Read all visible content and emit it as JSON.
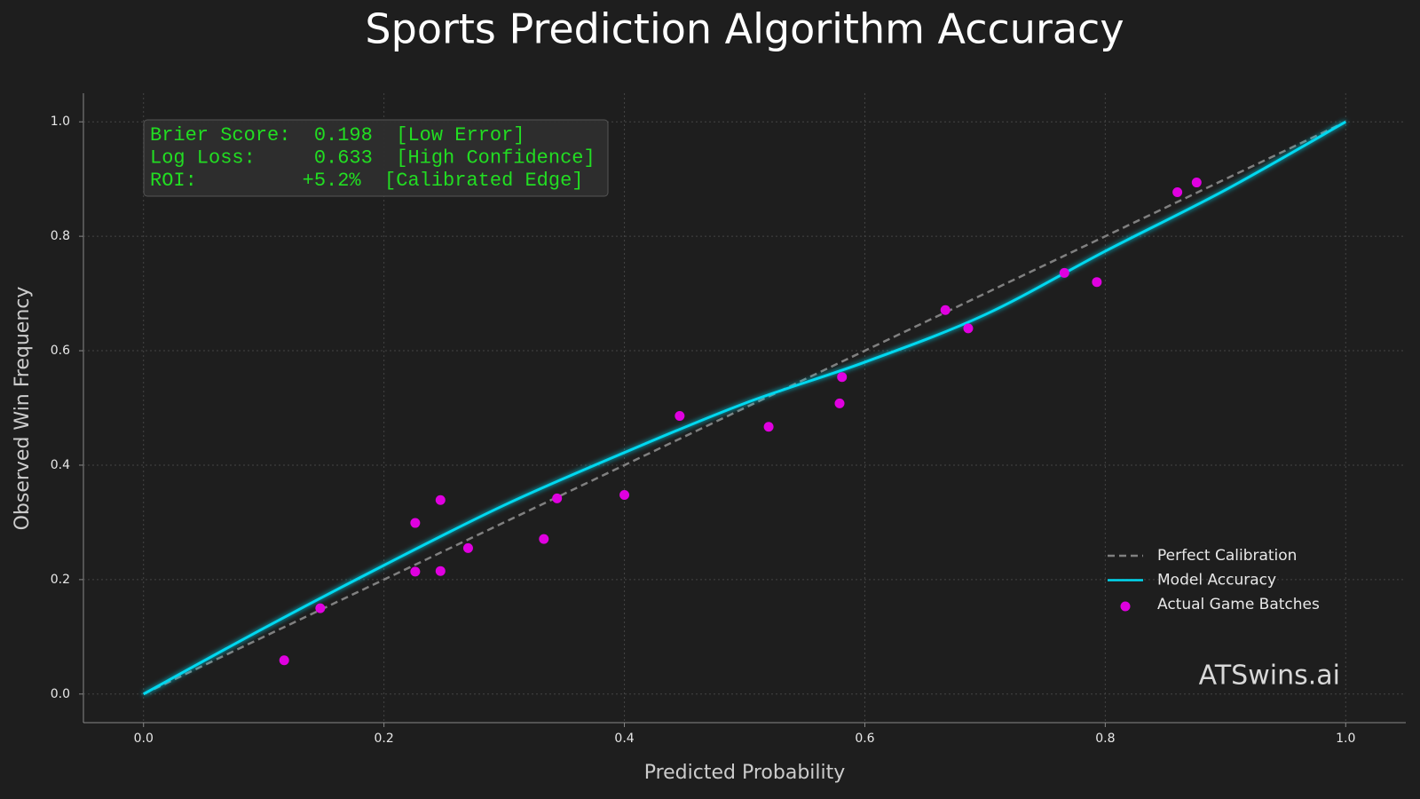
{
  "chart_data": {
    "type": "scatter",
    "title": "Sports Prediction Algorithm Accuracy",
    "x_label": "Predicted Probability",
    "y_label": "Observed Win Frequency",
    "xlim": [
      -0.05,
      1.05
    ],
    "ylim": [
      -0.05,
      1.05
    ],
    "xticks": [
      {
        "value": 0,
        "label": "0.0"
      },
      0.2,
      0.4,
      0.6,
      0.8,
      {
        "value": 1,
        "label": "1.0"
      }
    ],
    "yticks": [
      {
        "value": 0,
        "label": "0.0"
      },
      0.2,
      0.4,
      0.6,
      0.8,
      {
        "value": 1,
        "label": "1.0"
      }
    ],
    "grid": true,
    "legend": "lower right",
    "annotation": [
      "Brier Score:  0.198  [Low Error]",
      "Log Loss:     0.633  [High Confidence]",
      "ROI:         +5.2%  [Calibrated Edge]"
    ],
    "watermark": "ATSwins.ai",
    "series": [
      {
        "name": "Perfect Calibration",
        "style": "dashed",
        "color": "#808080",
        "x": [
          0,
          1
        ],
        "values": [
          0,
          1
        ]
      },
      {
        "name": "Model Accuracy",
        "style": "line",
        "color": "#00d8f0",
        "x": [
          0,
          0.1,
          0.2,
          0.3,
          0.4,
          0.5,
          0.6,
          0.7,
          0.8,
          0.9,
          1.0
        ],
        "values": [
          0,
          0.115,
          0.225,
          0.33,
          0.422,
          0.508,
          0.58,
          0.663,
          0.774,
          0.881,
          1.0
        ]
      },
      {
        "name": "Actual Game Batches",
        "style": "markers",
        "color": "#e000e0",
        "x": [
          0.117,
          0.147,
          0.226,
          0.226,
          0.247,
          0.247,
          0.27,
          0.333,
          0.344,
          0.4,
          0.446,
          0.52,
          0.579,
          0.581,
          0.667,
          0.686,
          0.766,
          0.793,
          0.86,
          0.876
        ],
        "values": [
          0.059,
          0.15,
          0.299,
          0.214,
          0.339,
          0.215,
          0.255,
          0.271,
          0.342,
          0.348,
          0.486,
          0.467,
          0.508,
          0.554,
          0.671,
          0.639,
          0.736,
          0.72,
          0.877,
          0.894
        ]
      }
    ]
  }
}
